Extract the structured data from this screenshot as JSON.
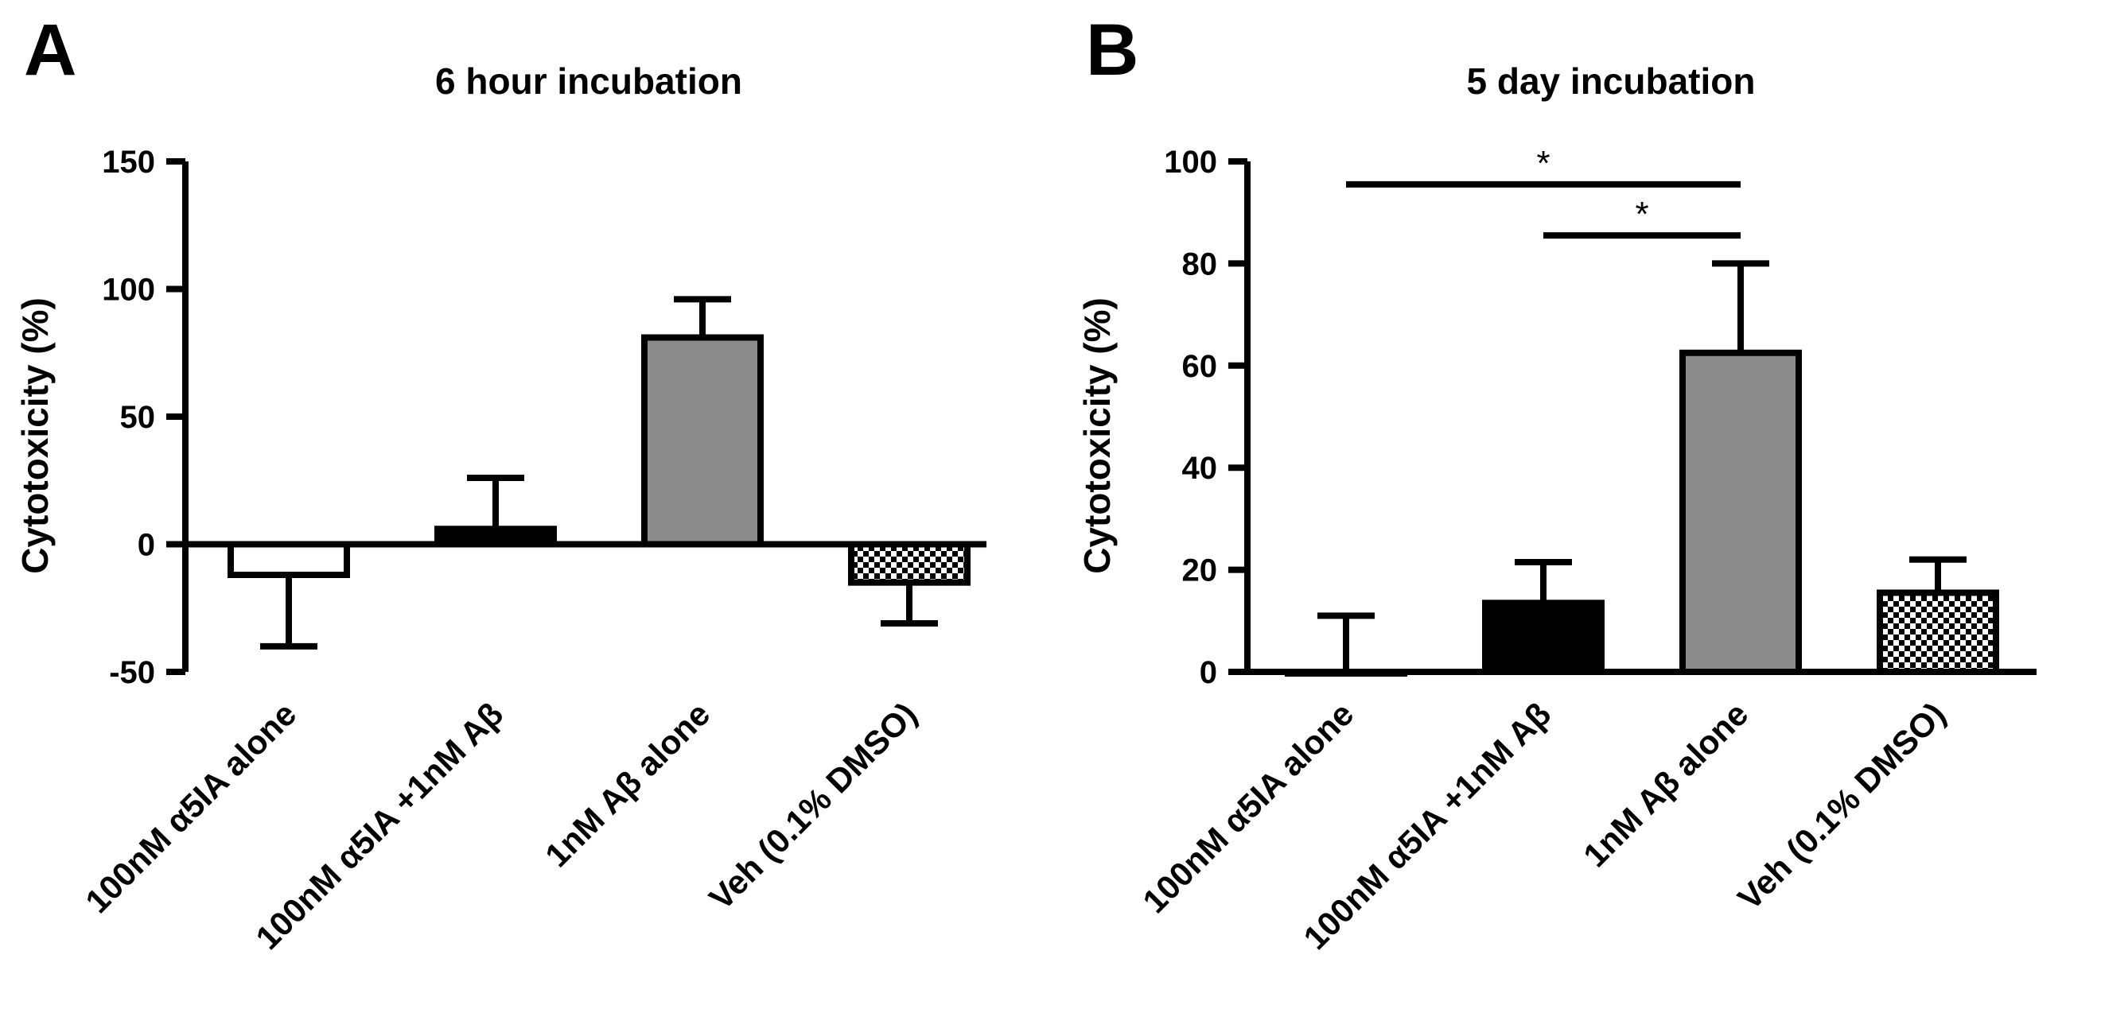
{
  "chart_data": [
    {
      "panel": "A",
      "type": "bar",
      "title": "6 hour incubation",
      "xlabel": "",
      "ylabel": "Cytotoxicity  (%)",
      "ylim": [
        -50,
        150
      ],
      "yticks": [
        -50,
        0,
        50,
        100,
        150
      ],
      "grid": false,
      "categories": [
        "100nM α5IA alone",
        "100nM α5IA +1nM Aβ",
        "1nM Aβ alone",
        "Veh (0.1% DMSO)"
      ],
      "values": [
        -12,
        6,
        81,
        -15
      ],
      "errors": [
        28,
        20,
        15,
        16
      ],
      "fills": [
        "white",
        "black",
        "gray",
        "checker"
      ],
      "annotations": []
    },
    {
      "panel": "B",
      "type": "bar",
      "title": "5 day incubation",
      "xlabel": "",
      "ylabel": "Cytotoxicity  (%)",
      "ylim": [
        0,
        100
      ],
      "yticks": [
        0,
        20,
        40,
        60,
        80,
        100
      ],
      "grid": false,
      "categories": [
        "100nM α5IA alone",
        "100nM α5IA +1nM Aβ",
        "1nM Aβ alone",
        "Veh (0.1% DMSO)"
      ],
      "values": [
        0,
        13.5,
        62.5,
        15.5
      ],
      "errors": [
        11,
        8,
        17.5,
        6.5
      ],
      "fills": [
        "white",
        "black",
        "gray",
        "checker"
      ],
      "annotations": [
        {
          "text": "*",
          "from": 0,
          "to": 2,
          "y": 95.5
        },
        {
          "text": "*",
          "from": 1,
          "to": 2,
          "y": 85.5
        }
      ]
    }
  ]
}
